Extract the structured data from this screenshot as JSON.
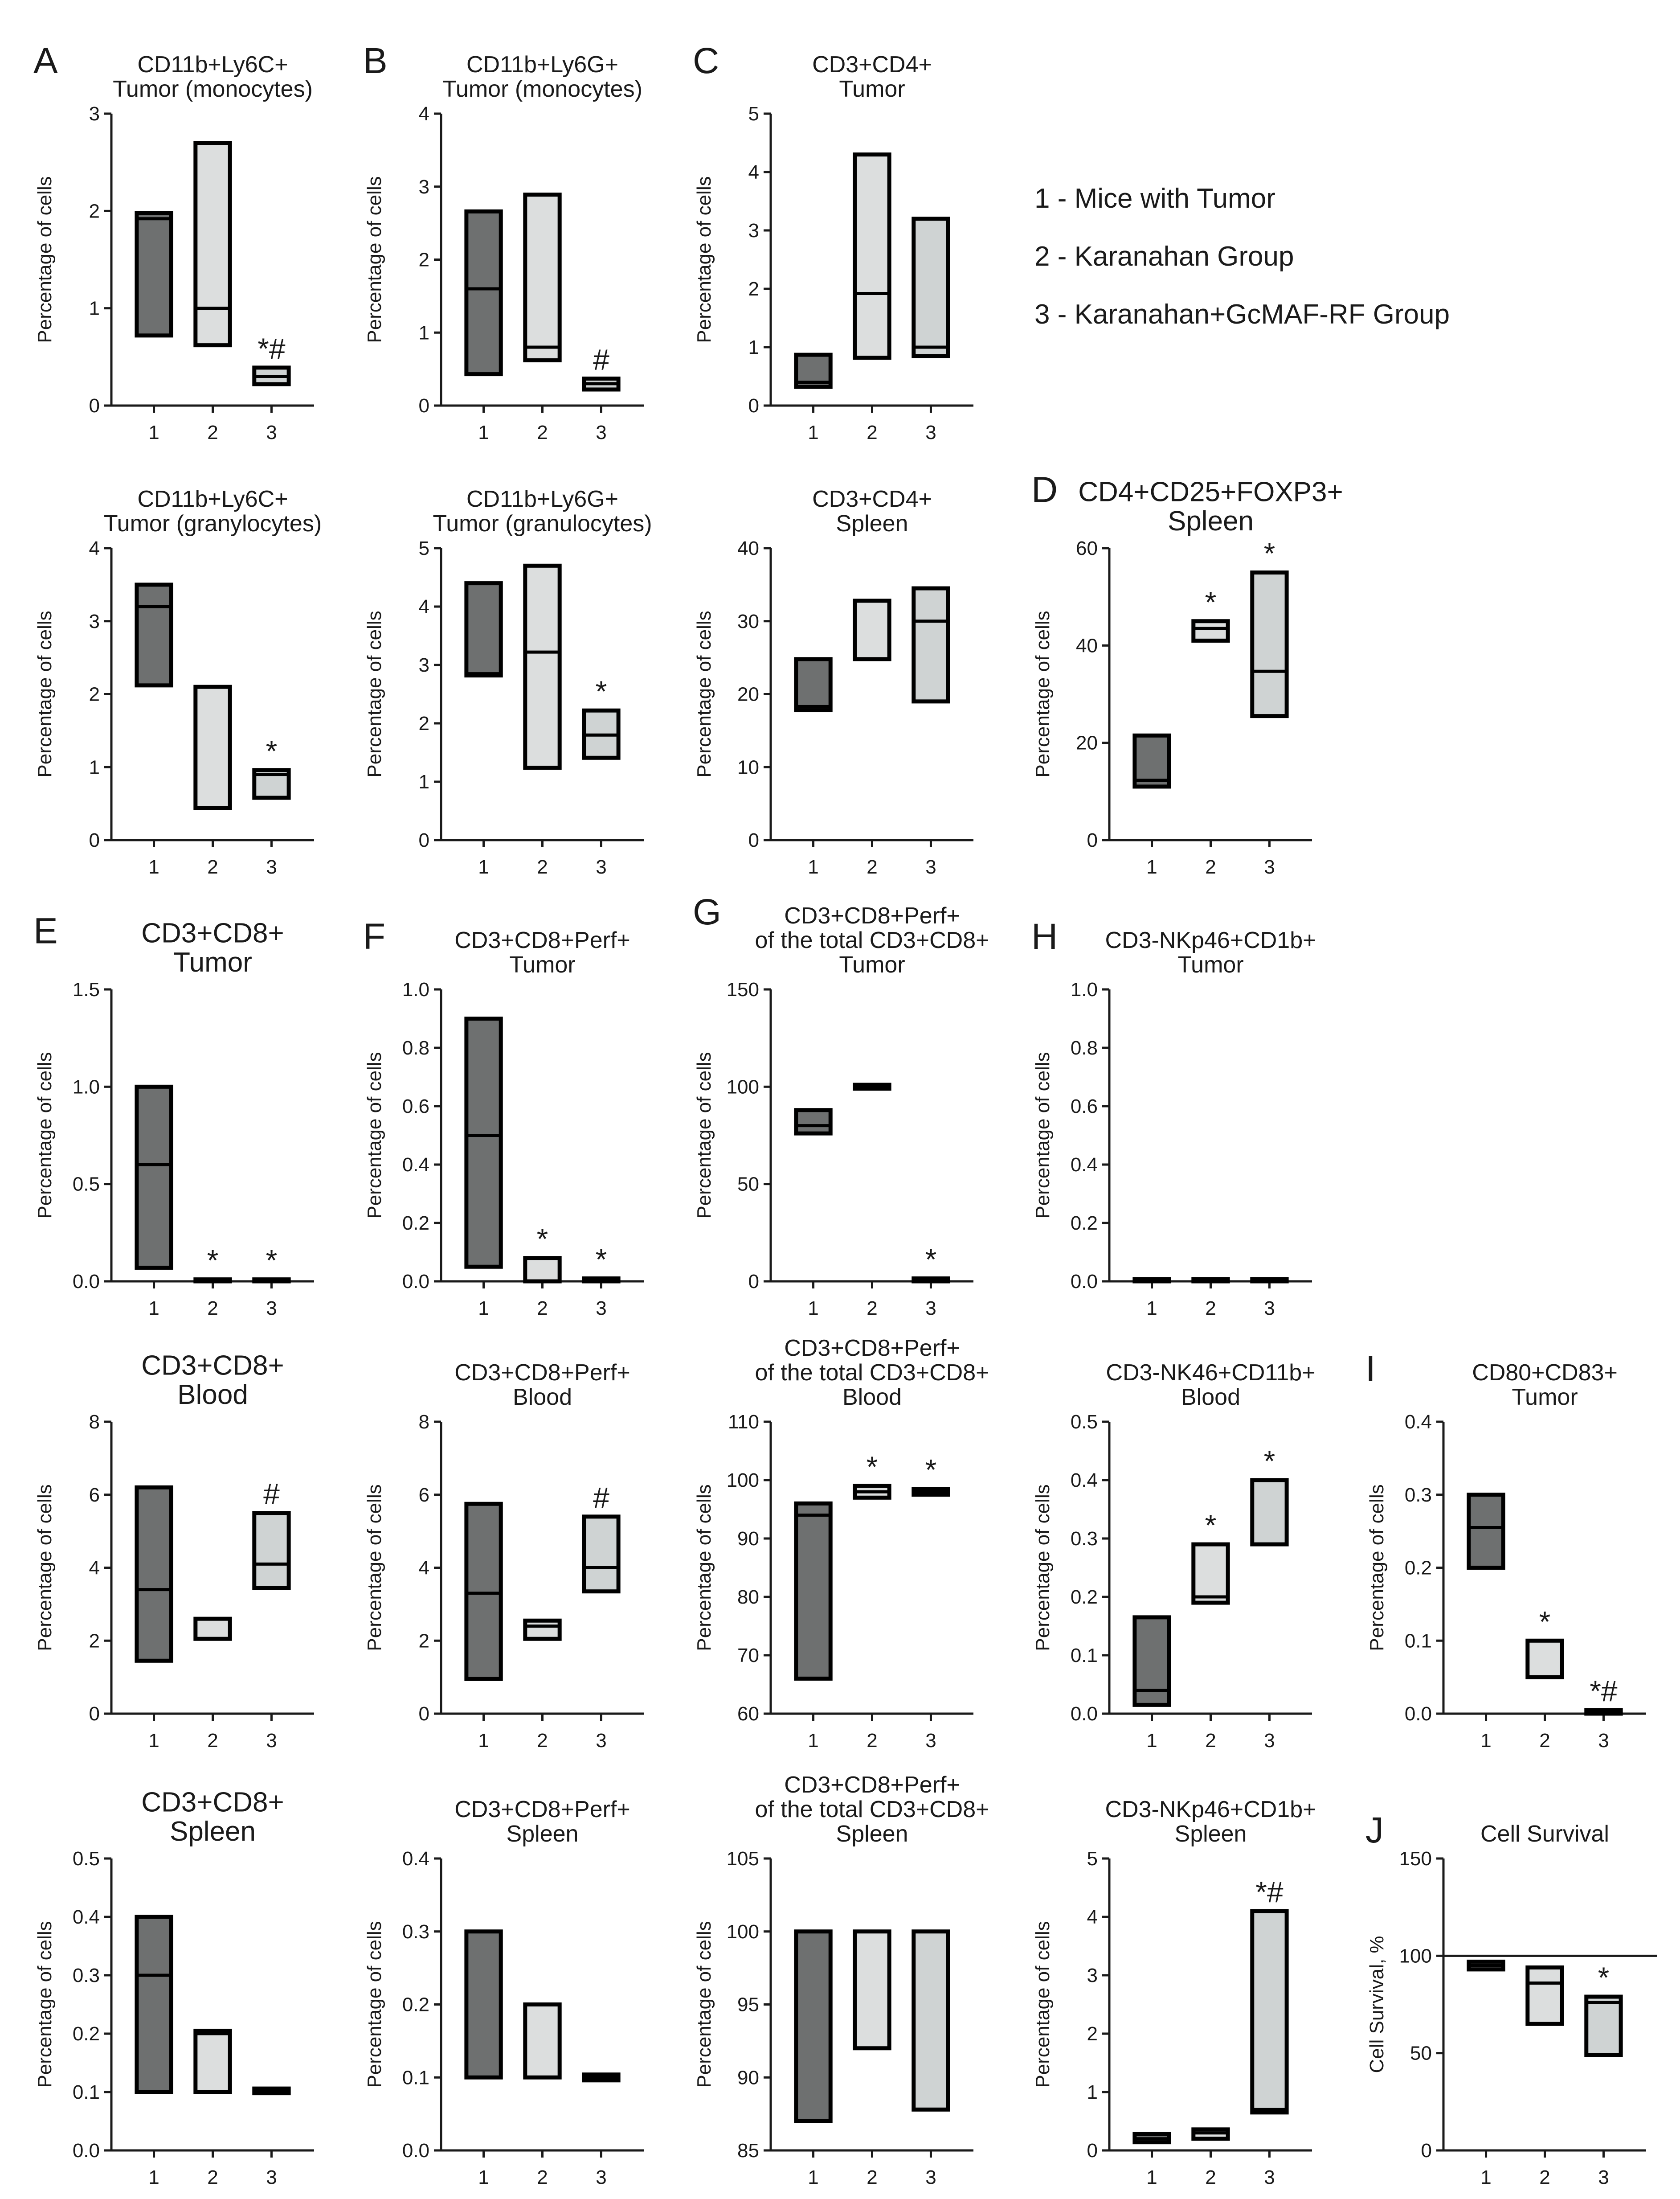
{
  "colors": {
    "group1": "#6e7070",
    "group2": "#dcdede",
    "group3": "#cfd3d3",
    "stroke": "#000000"
  },
  "legend": {
    "items": [
      "1 - Mice with Tumor",
      "2 - Karanahan Group",
      "3 - Karanahan+GcMAF-RF Group"
    ]
  },
  "chart_data": [
    {
      "type": "box",
      "panel_label": "A",
      "title": [
        "CD11b+Ly6C+",
        "Tumor (monocytes)"
      ],
      "ylabel": "Percentage of cells",
      "categories": [
        "1",
        "2",
        "3"
      ],
      "ylim": [
        0,
        3
      ],
      "yticks": [
        "0",
        "1",
        "2",
        "3"
      ],
      "boxes": [
        {
          "low": 0.72,
          "high": 1.98,
          "median": 1.92
        },
        {
          "low": 0.62,
          "high": 2.7,
          "median": 1.0
        },
        {
          "low": 0.22,
          "high": 0.39,
          "median": 0.3
        }
      ],
      "significance": [
        "",
        "",
        "*#"
      ]
    },
    {
      "type": "box",
      "panel_label": "B",
      "title": [
        "CD11b+Ly6G+",
        "Tumor (monocytes)"
      ],
      "ylabel": "Percentage of cells",
      "categories": [
        "1",
        "2",
        "3"
      ],
      "ylim": [
        0,
        4
      ],
      "yticks": [
        "0",
        "1",
        "2",
        "3",
        "4"
      ],
      "boxes": [
        {
          "low": 0.43,
          "high": 2.66,
          "median": 1.6
        },
        {
          "low": 0.62,
          "high": 2.89,
          "median": 0.8
        },
        {
          "low": 0.22,
          "high": 0.37,
          "median": 0.3
        }
      ],
      "significance": [
        "",
        "",
        "#"
      ]
    },
    {
      "type": "box",
      "panel_label": "C",
      "title": [
        "CD3+CD4+",
        "Tumor"
      ],
      "ylabel": "Percentage of cells",
      "categories": [
        "1",
        "2",
        "3"
      ],
      "ylim": [
        0,
        5
      ],
      "yticks": [
        "0",
        "1",
        "2",
        "3",
        "4",
        "5"
      ],
      "boxes": [
        {
          "low": 0.32,
          "high": 0.87,
          "median": 0.4
        },
        {
          "low": 0.82,
          "high": 4.3,
          "median": 1.92
        },
        {
          "low": 0.85,
          "high": 3.2,
          "median": 1.0
        }
      ],
      "significance": [
        "",
        "",
        ""
      ]
    },
    {
      "type": "box",
      "panel_label": "",
      "title": [
        "CD11b+Ly6C+",
        "Tumor (granylocytes)"
      ],
      "ylabel": "Percentage of cells",
      "categories": [
        "1",
        "2",
        "3"
      ],
      "ylim": [
        0,
        4
      ],
      "yticks": [
        "0",
        "1",
        "2",
        "3",
        "4"
      ],
      "boxes": [
        {
          "low": 2.12,
          "high": 3.5,
          "median": 3.2
        },
        {
          "low": 0.44,
          "high": 2.1,
          "median": 2.1
        },
        {
          "low": 0.58,
          "high": 0.96,
          "median": 0.9
        }
      ],
      "significance": [
        "",
        "",
        "*"
      ]
    },
    {
      "type": "box",
      "panel_label": "",
      "title": [
        "CD11b+Ly6G+",
        "Tumor (granulocytes)"
      ],
      "ylabel": "Percentage of cells",
      "categories": [
        "1",
        "2",
        "3"
      ],
      "ylim": [
        0,
        5
      ],
      "yticks": [
        "0",
        "1",
        "2",
        "3",
        "4",
        "5"
      ],
      "boxes": [
        {
          "low": 2.82,
          "high": 4.4,
          "median": 2.85
        },
        {
          "low": 1.24,
          "high": 4.7,
          "median": 3.22
        },
        {
          "low": 1.41,
          "high": 2.22,
          "median": 1.8
        }
      ],
      "significance": [
        "",
        "",
        "*"
      ]
    },
    {
      "type": "box",
      "panel_label": "",
      "title": [
        "CD3+CD4+",
        "Spleen"
      ],
      "ylabel": "Percentage of cells",
      "categories": [
        "1",
        "2",
        "3"
      ],
      "ylim": [
        0,
        40
      ],
      "yticks": [
        "0",
        "10",
        "20",
        "30",
        "40"
      ],
      "boxes": [
        {
          "low": 17.8,
          "high": 24.8,
          "median": 18.3
        },
        {
          "low": 24.8,
          "high": 32.8,
          "median": 24.8
        },
        {
          "low": 19.0,
          "high": 34.5,
          "median": 30.0
        }
      ],
      "significance": [
        "",
        "",
        ""
      ]
    },
    {
      "type": "box",
      "panel_label": "D",
      "title": [
        "CD4+CD25+FOXP3+",
        "Spleen"
      ],
      "title_large": true,
      "ylabel": "Percentage of cells",
      "categories": [
        "1",
        "2",
        "3"
      ],
      "ylim": [
        0,
        60
      ],
      "yticks": [
        "0",
        "20",
        "40",
        "60"
      ],
      "boxes": [
        {
          "low": 11.0,
          "high": 21.5,
          "median": 12.3
        },
        {
          "low": 41.0,
          "high": 45.0,
          "median": 43.5
        },
        {
          "low": 25.5,
          "high": 55.0,
          "median": 34.7
        }
      ],
      "significance": [
        "",
        "*",
        "*"
      ]
    },
    {
      "type": "box",
      "panel_label": "E",
      "title": [
        "CD3+CD8+",
        "Tumor"
      ],
      "title_large": true,
      "ylabel": "Percentage of cells",
      "categories": [
        "1",
        "2",
        "3"
      ],
      "ylim": [
        0,
        1.5
      ],
      "yticks": [
        "0.0",
        "0.5",
        "1.0",
        "1.5"
      ],
      "boxes": [
        {
          "low": 0.07,
          "high": 1.0,
          "median": 0.6
        },
        {
          "low": 0.0,
          "high": 0.01,
          "median": 0.005
        },
        {
          "low": 0.0,
          "high": 0.01,
          "median": 0.005
        }
      ],
      "significance": [
        "",
        "*",
        "*"
      ]
    },
    {
      "type": "box",
      "panel_label": "F",
      "title": [
        "CD3+CD8+Perf+",
        "Tumor"
      ],
      "ylabel": "Percentage of cells",
      "categories": [
        "1",
        "2",
        "3"
      ],
      "ylim": [
        0,
        1.0
      ],
      "yticks": [
        "0.0",
        "0.2",
        "0.4",
        "0.6",
        "0.8",
        "1.0"
      ],
      "boxes": [
        {
          "low": 0.05,
          "high": 0.9,
          "median": 0.5
        },
        {
          "low": 0.0,
          "high": 0.08,
          "median": 0.0
        },
        {
          "low": 0.0,
          "high": 0.01,
          "median": 0.005
        }
      ],
      "significance": [
        "",
        "*",
        "*"
      ]
    },
    {
      "type": "box",
      "panel_label": "G",
      "title": [
        "CD3+CD8+Perf+",
        "of the total CD3+CD8+",
        "Tumor"
      ],
      "ylabel": "Percentage of cells",
      "categories": [
        "1",
        "2",
        "3"
      ],
      "ylim": [
        0,
        150
      ],
      "yticks": [
        "0",
        "50",
        "100",
        "150"
      ],
      "boxes": [
        {
          "low": 76.0,
          "high": 88.0,
          "median": 80.0
        },
        {
          "low": 99.0,
          "high": 101.0,
          "median": 100.0
        },
        {
          "low": 0.0,
          "high": 1.5,
          "median": 0.7
        }
      ],
      "significance": [
        "",
        "",
        "*"
      ]
    },
    {
      "type": "box",
      "panel_label": "H",
      "title": [
        "CD3-NKp46+CD1b+",
        "Tumor"
      ],
      "ylabel": "Percentage of cells",
      "categories": [
        "1",
        "2",
        "3"
      ],
      "ylim": [
        0,
        1.0
      ],
      "yticks": [
        "0.0",
        "0.2",
        "0.4",
        "0.6",
        "0.8",
        "1.0"
      ],
      "boxes": [
        {
          "low": 0.0,
          "high": 0.008,
          "median": 0.004
        },
        {
          "low": 0.0,
          "high": 0.008,
          "median": 0.004
        },
        {
          "low": 0.0,
          "high": 0.008,
          "median": 0.004
        }
      ],
      "significance": [
        "",
        "",
        ""
      ]
    },
    {
      "type": "box",
      "panel_label": "",
      "title": [
        "CD3+CD8+",
        "Blood"
      ],
      "title_large": true,
      "ylabel": "Percentage of cells",
      "categories": [
        "1",
        "2",
        "3"
      ],
      "ylim": [
        0,
        8
      ],
      "yticks": [
        "0",
        "2",
        "4",
        "6",
        "8"
      ],
      "boxes": [
        {
          "low": 1.45,
          "high": 6.2,
          "median": 3.4
        },
        {
          "low": 2.05,
          "high": 2.6,
          "median": 2.6
        },
        {
          "low": 3.45,
          "high": 5.5,
          "median": 4.1
        }
      ],
      "significance": [
        "",
        "",
        "#"
      ]
    },
    {
      "type": "box",
      "panel_label": "",
      "title": [
        "CD3+CD8+Perf+",
        "Blood"
      ],
      "ylabel": "Percentage of cells",
      "categories": [
        "1",
        "2",
        "3"
      ],
      "ylim": [
        0,
        8
      ],
      "yticks": [
        "0",
        "2",
        "4",
        "6",
        "8"
      ],
      "boxes": [
        {
          "low": 0.95,
          "high": 5.75,
          "median": 3.3
        },
        {
          "low": 2.05,
          "high": 2.55,
          "median": 2.4
        },
        {
          "low": 3.35,
          "high": 5.4,
          "median": 4.0
        }
      ],
      "significance": [
        "",
        "",
        "#"
      ]
    },
    {
      "type": "box",
      "panel_label": "",
      "title": [
        "CD3+CD8+Perf+",
        "of the total CD3+CD8+",
        "Blood"
      ],
      "ylabel": "Percentage of cells",
      "categories": [
        "1",
        "2",
        "3"
      ],
      "ylim": [
        60,
        110
      ],
      "yticks": [
        "60",
        "70",
        "80",
        "90",
        "100",
        "110"
      ],
      "boxes": [
        {
          "low": 66.0,
          "high": 96.0,
          "median": 94.0
        },
        {
          "low": 97.0,
          "high": 99.0,
          "median": 98.0
        },
        {
          "low": 97.5,
          "high": 98.5,
          "median": 98.0
        }
      ],
      "significance": [
        "",
        "*",
        "*"
      ]
    },
    {
      "type": "box",
      "panel_label": "",
      "title": [
        "CD3-NK46+CD11b+",
        "Blood"
      ],
      "ylabel": "Percentage of cells",
      "categories": [
        "1",
        "2",
        "3"
      ],
      "ylim": [
        0,
        0.5
      ],
      "yticks": [
        "0.0",
        "0.1",
        "0.2",
        "0.3",
        "0.4",
        "0.5"
      ],
      "boxes": [
        {
          "low": 0.015,
          "high": 0.165,
          "median": 0.04
        },
        {
          "low": 0.19,
          "high": 0.29,
          "median": 0.2
        },
        {
          "low": 0.29,
          "high": 0.4,
          "median": 0.29
        }
      ],
      "significance": [
        "",
        "*",
        "*"
      ]
    },
    {
      "type": "box",
      "panel_label": "I",
      "title": [
        "CD80+CD83+",
        "Tumor"
      ],
      "ylabel": "Percentage of cells",
      "categories": [
        "1",
        "2",
        "3"
      ],
      "ylim": [
        0,
        0.4
      ],
      "yticks": [
        "0.0",
        "0.1",
        "0.2",
        "0.3",
        "0.4"
      ],
      "boxes": [
        {
          "low": 0.2,
          "high": 0.3,
          "median": 0.255
        },
        {
          "low": 0.05,
          "high": 0.1,
          "median": 0.1
        },
        {
          "low": 0.0,
          "high": 0.005,
          "median": 0.003
        }
      ],
      "significance": [
        "",
        "*",
        "*#"
      ]
    },
    {
      "type": "box",
      "panel_label": "",
      "title": [
        "CD3+CD8+",
        "Spleen"
      ],
      "title_large": true,
      "ylabel": "Percentage of cells",
      "categories": [
        "1",
        "2",
        "3"
      ],
      "ylim": [
        0,
        0.5
      ],
      "yticks": [
        "0.0",
        "0.1",
        "0.2",
        "0.3",
        "0.4",
        "0.5"
      ],
      "boxes": [
        {
          "low": 0.1,
          "high": 0.4,
          "median": 0.3
        },
        {
          "low": 0.1,
          "high": 0.205,
          "median": 0.2
        },
        {
          "low": 0.098,
          "high": 0.106,
          "median": 0.102
        }
      ],
      "significance": [
        "",
        "",
        ""
      ]
    },
    {
      "type": "box",
      "panel_label": "",
      "title": [
        "CD3+CD8+Perf+",
        "Spleen"
      ],
      "ylabel": "Percentage of cells",
      "categories": [
        "1",
        "2",
        "3"
      ],
      "ylim": [
        0,
        0.4
      ],
      "yticks": [
        "0.0",
        "0.1",
        "0.2",
        "0.3",
        "0.4"
      ],
      "boxes": [
        {
          "low": 0.1,
          "high": 0.3,
          "median": 0.3
        },
        {
          "low": 0.1,
          "high": 0.2,
          "median": 0.2
        },
        {
          "low": 0.096,
          "high": 0.104,
          "median": 0.1
        }
      ],
      "significance": [
        "",
        "",
        ""
      ]
    },
    {
      "type": "box",
      "panel_label": "",
      "title": [
        "CD3+CD8+Perf+",
        "of the total CD3+CD8+",
        "Spleen"
      ],
      "ylabel": "Percentage of cells",
      "categories": [
        "1",
        "2",
        "3"
      ],
      "ylim": [
        85,
        105
      ],
      "yticks": [
        "85",
        "90",
        "95",
        "100",
        "105"
      ],
      "boxes": [
        {
          "low": 87.0,
          "high": 100.0,
          "median": 100.0
        },
        {
          "low": 92.0,
          "high": 100.0,
          "median": 100.0
        },
        {
          "low": 87.8,
          "high": 100.0,
          "median": 100.0
        }
      ],
      "significance": [
        "",
        "",
        ""
      ]
    },
    {
      "type": "box",
      "panel_label": "",
      "title": [
        "CD3-NKp46+CD1b+",
        "Spleen"
      ],
      "ylabel": "Percentage of cells",
      "categories": [
        "1",
        "2",
        "3"
      ],
      "ylim": [
        0,
        5
      ],
      "yticks": [
        "0",
        "1",
        "2",
        "3",
        "4",
        "5"
      ],
      "boxes": [
        {
          "low": 0.14,
          "high": 0.28,
          "median": 0.2
        },
        {
          "low": 0.2,
          "high": 0.36,
          "median": 0.3
        },
        {
          "low": 0.65,
          "high": 4.1,
          "median": 0.7
        }
      ],
      "significance": [
        "",
        "",
        "*#"
      ]
    },
    {
      "type": "box",
      "panel_label": "J",
      "title": [
        "Cell Survival"
      ],
      "ylabel": "Cell Survival, %",
      "categories": [
        "1",
        "2",
        "3"
      ],
      "ylim": [
        0,
        150
      ],
      "yticks": [
        "0",
        "50",
        "100",
        "150"
      ],
      "reference_line": 100,
      "boxes": [
        {
          "low": 93.0,
          "high": 97.0,
          "median": 95.0
        },
        {
          "low": 65.0,
          "high": 94.0,
          "median": 86.0
        },
        {
          "low": 49.0,
          "high": 79.0,
          "median": 76.0
        }
      ],
      "significance": [
        "",
        "",
        "*"
      ]
    }
  ]
}
